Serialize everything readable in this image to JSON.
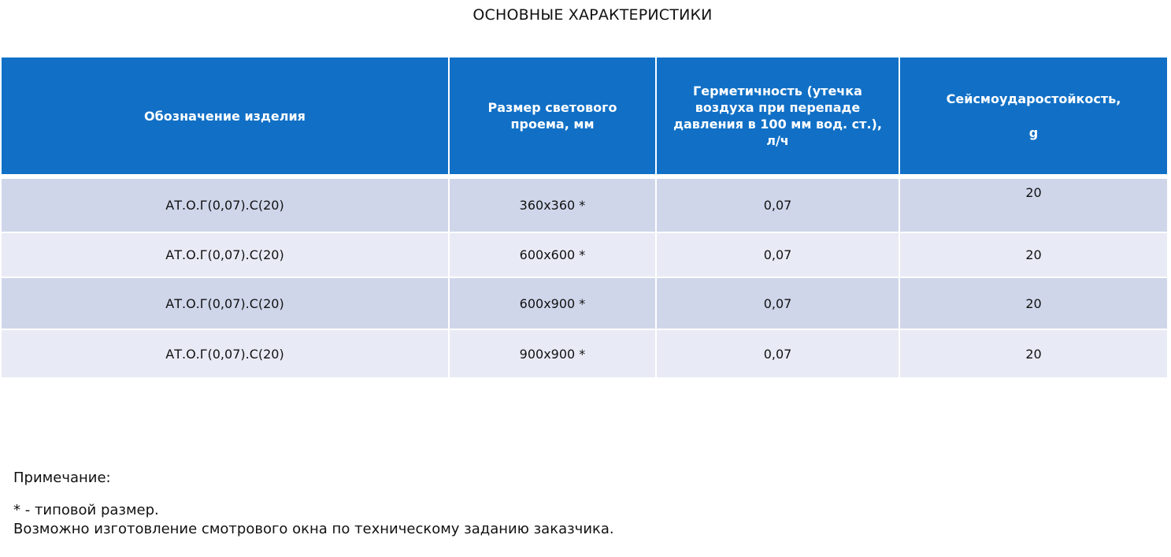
{
  "title": "ОСНОВНЫЕ ХАРАКТЕРИСТИКИ",
  "table": {
    "headers": [
      "Обозначение изделия",
      "Размер  светового проема, мм",
      "Герметичность (утечка воздуха при перепаде давления в 100 мм вод. ст.), л/ч",
      "Сейсмоударостойкость,"
    ],
    "header_unit_g": "g",
    "rows": [
      [
        "АТ.О.Г(0,07).С(20)",
        "360х360 *",
        "0,07",
        "20"
      ],
      [
        "АТ.О.Г(0,07).С(20)",
        "600х600 *",
        "0,07",
        "20"
      ],
      [
        "АТ.О.Г(0,07).С(20)",
        "600х900 *",
        "0,07",
        "20"
      ],
      [
        "АТ.О.Г(0,07).С(20)",
        "900х900 *",
        "0,07",
        "20"
      ]
    ]
  },
  "notes": {
    "heading": "Примечание:",
    "lines": [
      "* - типовой размер.",
      "Возможно изготовление смотрового окна по техническому заданию заказчика."
    ]
  },
  "colors": {
    "header_bg": "#1170c6",
    "row_dark": "#cfd6ea",
    "row_light": "#e8ebf5"
  }
}
